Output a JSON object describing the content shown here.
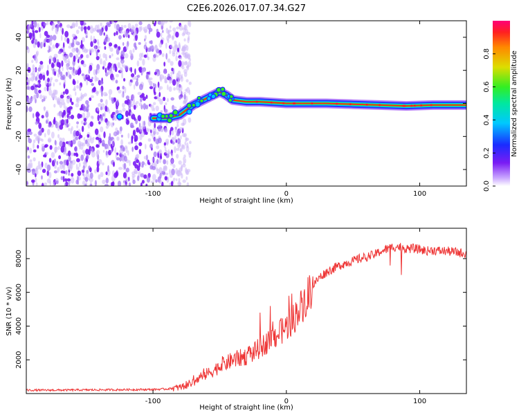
{
  "figure": {
    "title": "C2E6.2026.017.07.34.G27"
  },
  "chart_data": [
    {
      "type": "heatmap",
      "name": "frequency-spectrogram",
      "xlabel": "Height of straight line (km)",
      "ylabel": "Frequency (Hz)",
      "xlim": [
        -195,
        135
      ],
      "ylim": [
        -50,
        50
      ],
      "xticks": [
        -100,
        0,
        100
      ],
      "yticks": [
        -40,
        -20,
        0,
        20,
        40
      ],
      "noise_region_x": [
        -195,
        -80
      ],
      "trace": {
        "x": [
          -100,
          -90,
          -80,
          -70,
          -60,
          -50,
          -45,
          -40,
          -30,
          -20,
          -10,
          0,
          10,
          30,
          50,
          70,
          90,
          110,
          135
        ],
        "y": [
          -9,
          -9,
          -7,
          -1,
          3,
          7,
          5,
          2,
          1,
          1,
          0.5,
          0,
          0,
          0,
          -0.5,
          -1,
          -1.5,
          -1,
          -1
        ]
      },
      "colorbar": {
        "label": "Normalized spectral amplitude",
        "ticks": [
          0.0,
          0.2,
          0.4,
          0.6,
          0.8
        ],
        "range": [
          0,
          1
        ]
      }
    },
    {
      "type": "line",
      "name": "snr-curve",
      "xlabel": "Height of straight line (km)",
      "ylabel": "SNR (10 * v/v)",
      "xlim": [
        -195,
        135
      ],
      "ylim": [
        0,
        9800
      ],
      "xticks": [
        -100,
        0,
        100
      ],
      "yticks": [
        2000,
        4000,
        6000,
        8000
      ],
      "color": "#ee3333",
      "series": [
        {
          "name": "SNR",
          "x": [
            -195,
            -180,
            -160,
            -140,
            -120,
            -100,
            -90,
            -80,
            -70,
            -65,
            -60,
            -55,
            -50,
            -45,
            -40,
            -35,
            -30,
            -25,
            -20,
            -15,
            -10,
            -5,
            0,
            5,
            10,
            15,
            20,
            25,
            30,
            35,
            40,
            45,
            50,
            55,
            60,
            65,
            70,
            75,
            80,
            85,
            90,
            95,
            100,
            105,
            110,
            115,
            120,
            125,
            130,
            135
          ],
          "y": [
            200,
            200,
            210,
            220,
            230,
            240,
            270,
            360,
            650,
            900,
            1150,
            1350,
            1600,
            1800,
            2000,
            2100,
            2200,
            2400,
            2700,
            3000,
            3300,
            3600,
            3950,
            4400,
            5000,
            5700,
            6400,
            6900,
            7200,
            7400,
            7600,
            7750,
            7850,
            8000,
            8100,
            8200,
            8400,
            8550,
            8700,
            8700,
            8600,
            8600,
            8550,
            8450,
            8500,
            8450,
            8450,
            8400,
            8350,
            8300
          ]
        }
      ]
    }
  ]
}
